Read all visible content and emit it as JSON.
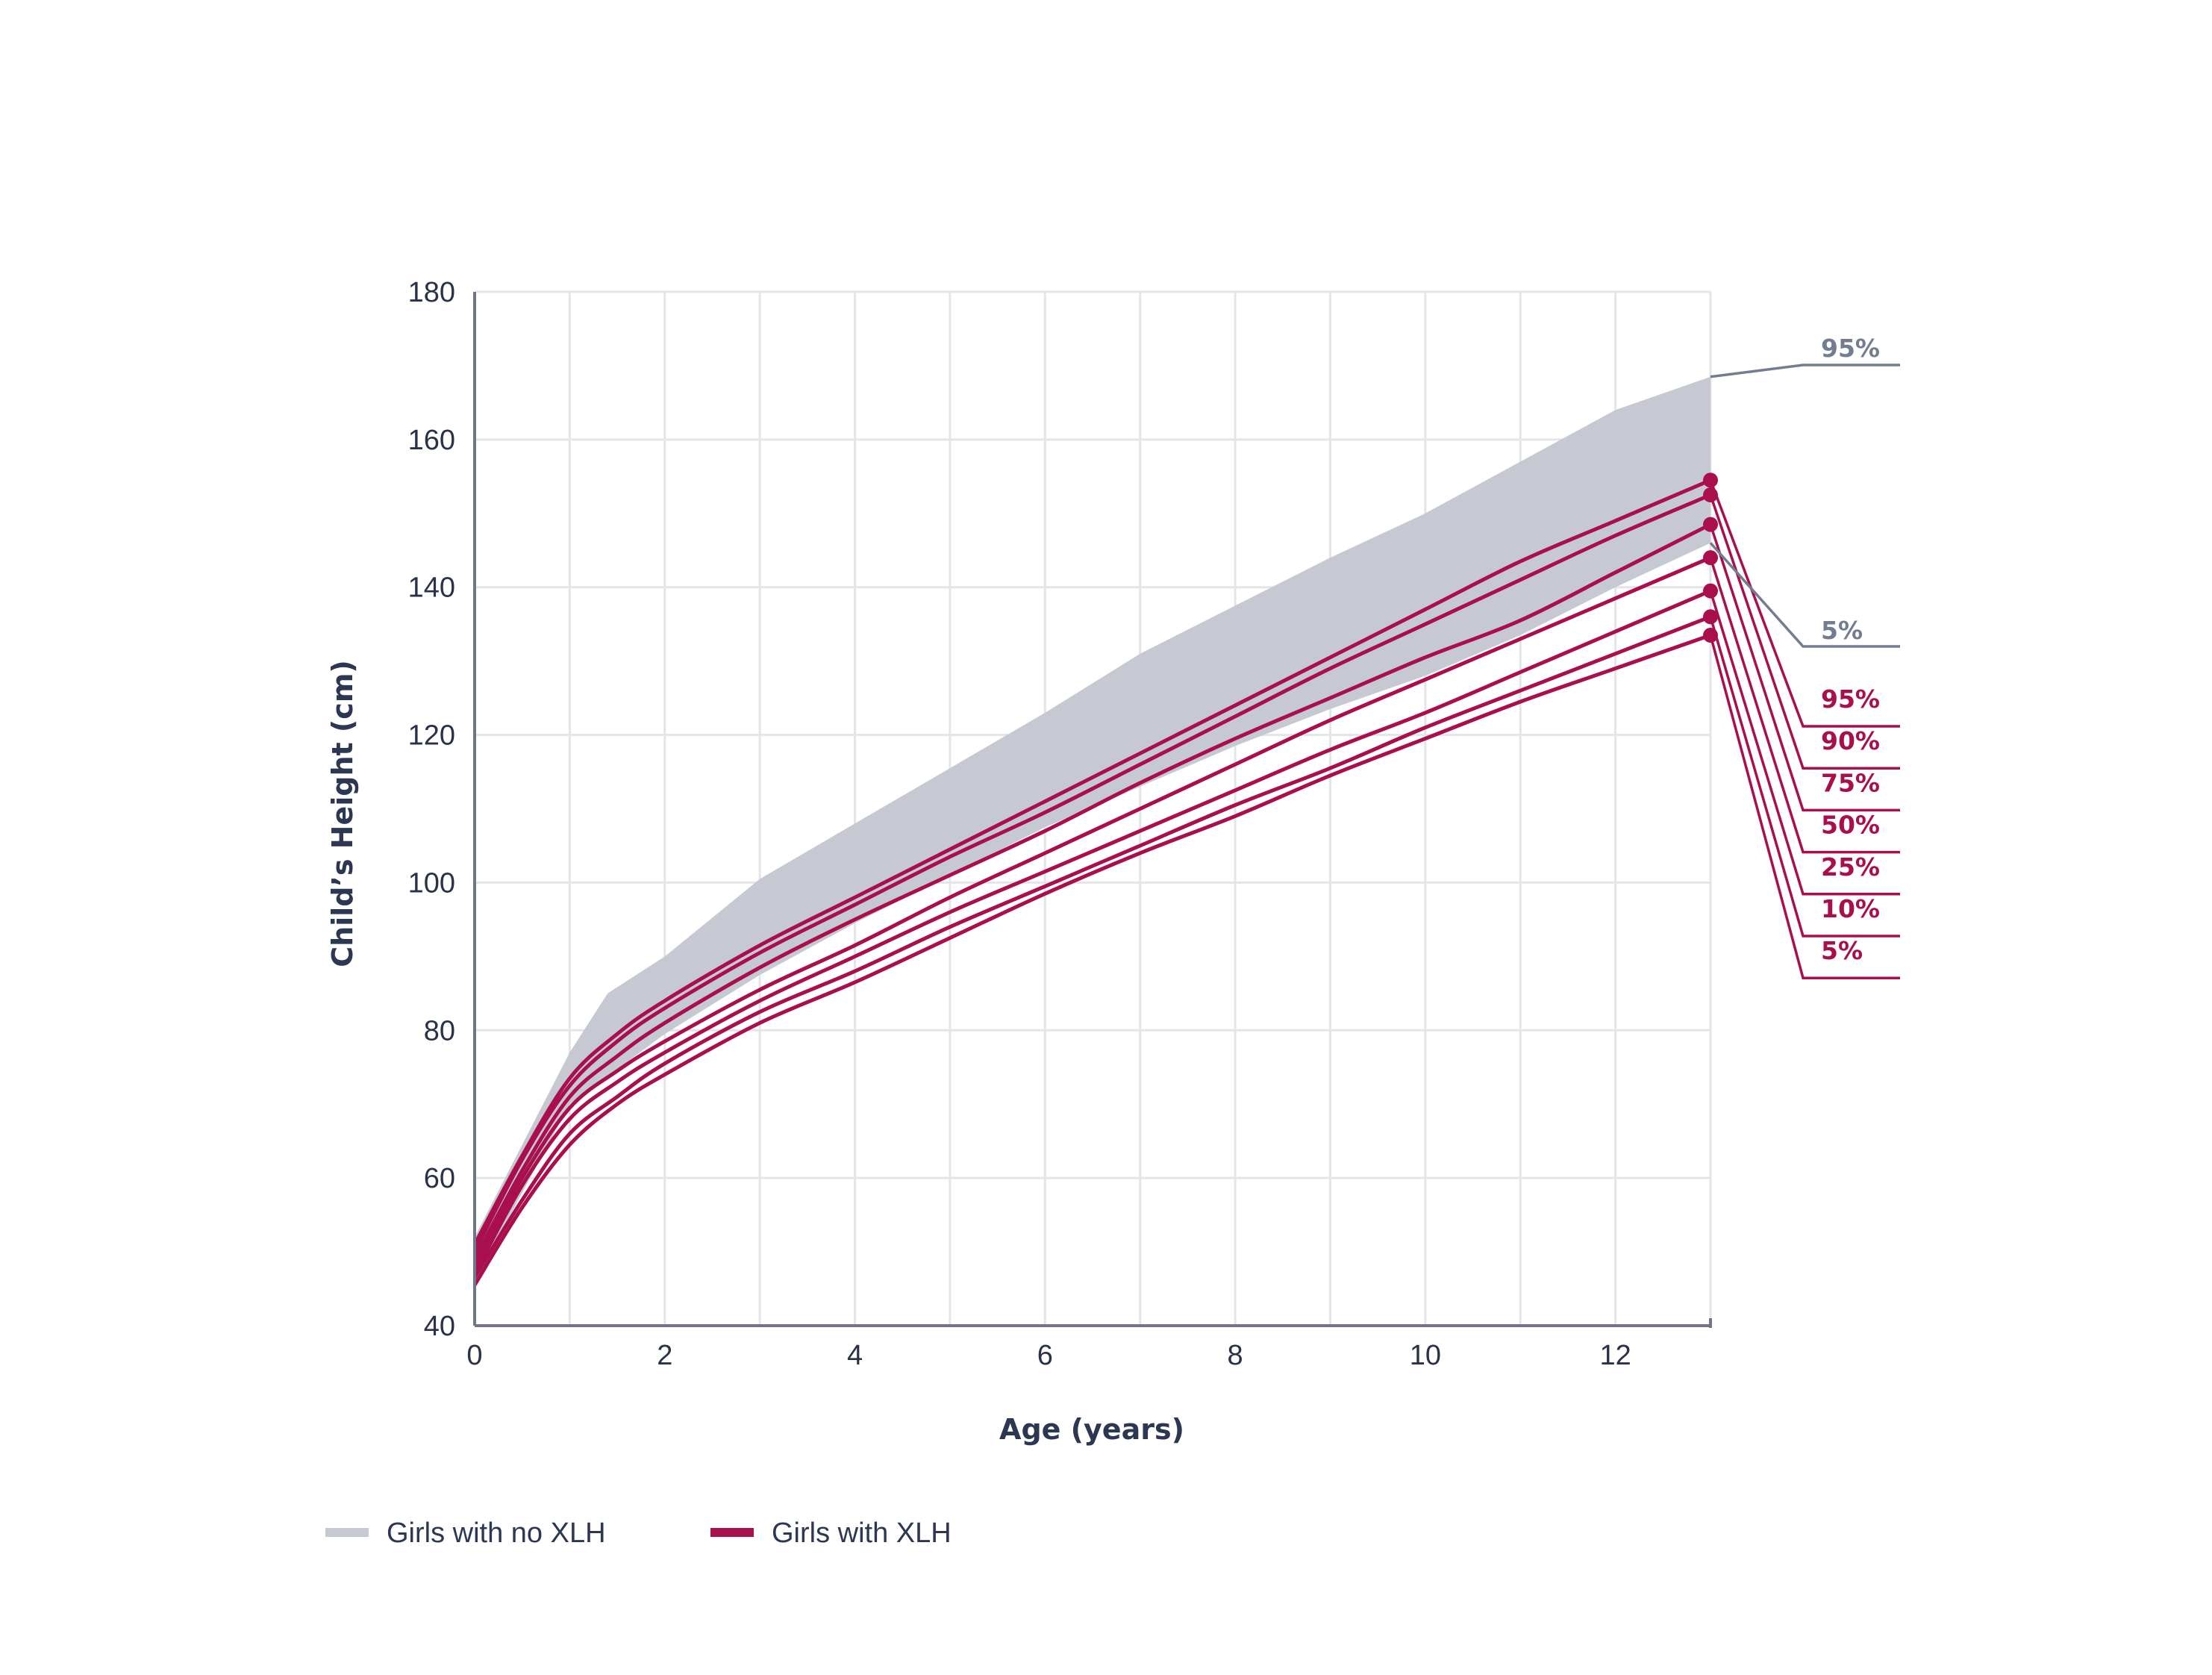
{
  "colors": {
    "band": "#c6c9d1",
    "xlh": "#a80f4c",
    "noxlh_label": "#747d8f",
    "grid": "#e4e5e8",
    "axis": "#6f7687"
  },
  "chart_data": {
    "type": "line",
    "xlabel": "Age (years)",
    "ylabel": "Child’s Height (cm)",
    "xlim": [
      0,
      13
    ],
    "ylim": [
      40,
      180
    ],
    "x_ticks": [
      0,
      2,
      4,
      6,
      8,
      10,
      12
    ],
    "y_ticks": [
      40,
      60,
      80,
      100,
      120,
      140,
      160,
      180
    ],
    "grid": true,
    "legend_placement": "bottom-left",
    "legend": [
      {
        "label": "Girls with no XLH",
        "kind": "band"
      },
      {
        "label": "Girls with XLH",
        "kind": "line"
      }
    ],
    "reference_band": {
      "name": "Girls with no XLH",
      "upper": {
        "label": "95%",
        "x": [
          0,
          1,
          1.4,
          2,
          3,
          4,
          5,
          6,
          7,
          8,
          9,
          10,
          11,
          12,
          13
        ],
        "y": [
          52,
          77,
          85,
          90,
          100.5,
          108,
          115.5,
          123,
          131,
          137.5,
          144,
          150,
          157,
          164,
          168.5
        ]
      },
      "lower": {
        "label": "5%",
        "x": [
          0,
          1,
          2,
          3,
          4,
          5,
          6,
          7,
          8,
          9,
          10,
          11,
          12,
          13
        ],
        "y": [
          46,
          70,
          79.5,
          87.5,
          94.5,
          101,
          107.5,
          113,
          118.5,
          123.5,
          128,
          133.5,
          140,
          146
        ]
      }
    },
    "series": [
      {
        "name": "95%",
        "x": [
          0,
          0.5,
          1,
          1.5,
          2,
          3,
          4,
          5,
          6,
          7,
          8,
          9,
          10,
          11,
          12,
          13
        ],
        "y": [
          51,
          63,
          73.5,
          79.5,
          84,
          91.5,
          98,
          104.5,
          111,
          117.5,
          124,
          130.5,
          137,
          143.5,
          149,
          154.5
        ]
      },
      {
        "name": "90%",
        "x": [
          0,
          0.5,
          1,
          1.5,
          2,
          3,
          4,
          5,
          6,
          7,
          8,
          9,
          10,
          11,
          12,
          13
        ],
        "y": [
          50,
          62.5,
          72.5,
          78.5,
          83,
          90.5,
          97,
          103.5,
          109.5,
          116,
          122.5,
          129,
          135,
          141,
          147,
          152.5
        ]
      },
      {
        "name": "75%",
        "x": [
          0,
          0.5,
          1,
          1.5,
          2,
          3,
          4,
          5,
          6,
          7,
          8,
          9,
          10,
          11,
          12,
          13
        ],
        "y": [
          49,
          61,
          71,
          76.5,
          81,
          88.5,
          95,
          101,
          107,
          113.5,
          119.5,
          125,
          130.5,
          135.5,
          142,
          148.5
        ]
      },
      {
        "name": "50%",
        "x": [
          0,
          0.5,
          1,
          1.5,
          2,
          3,
          4,
          5,
          6,
          7,
          8,
          9,
          10,
          11,
          12,
          13
        ],
        "y": [
          48,
          60,
          69.5,
          74.5,
          78.5,
          85.5,
          91.5,
          98,
          104,
          110,
          116,
          122,
          127.5,
          133,
          138.5,
          144
        ]
      },
      {
        "name": "25%",
        "x": [
          0,
          0.5,
          1,
          1.5,
          2,
          3,
          4,
          5,
          6,
          7,
          8,
          9,
          10,
          11,
          12,
          13
        ],
        "y": [
          47,
          59,
          68,
          73,
          77,
          84,
          90,
          96,
          101.5,
          107,
          112.5,
          118,
          123,
          128.5,
          134,
          139.5
        ]
      },
      {
        "name": "10%",
        "x": [
          0,
          0.5,
          1,
          1.5,
          2,
          3,
          4,
          5,
          6,
          7,
          8,
          9,
          10,
          11,
          12,
          13
        ],
        "y": [
          46.5,
          57,
          66,
          71,
          75.5,
          82.5,
          88,
          94,
          99.5,
          105,
          110.5,
          115.5,
          121,
          126,
          131,
          136
        ]
      },
      {
        "name": "5%",
        "x": [
          0,
          0.5,
          1,
          1.5,
          2,
          3,
          4,
          5,
          6,
          7,
          8,
          9,
          10,
          11,
          12,
          13
        ],
        "y": [
          45.5,
          56,
          64.5,
          70,
          74,
          81,
          86.5,
          92.5,
          98.5,
          104,
          109,
          114.5,
          119.5,
          124.5,
          129,
          133.5
        ]
      }
    ]
  }
}
